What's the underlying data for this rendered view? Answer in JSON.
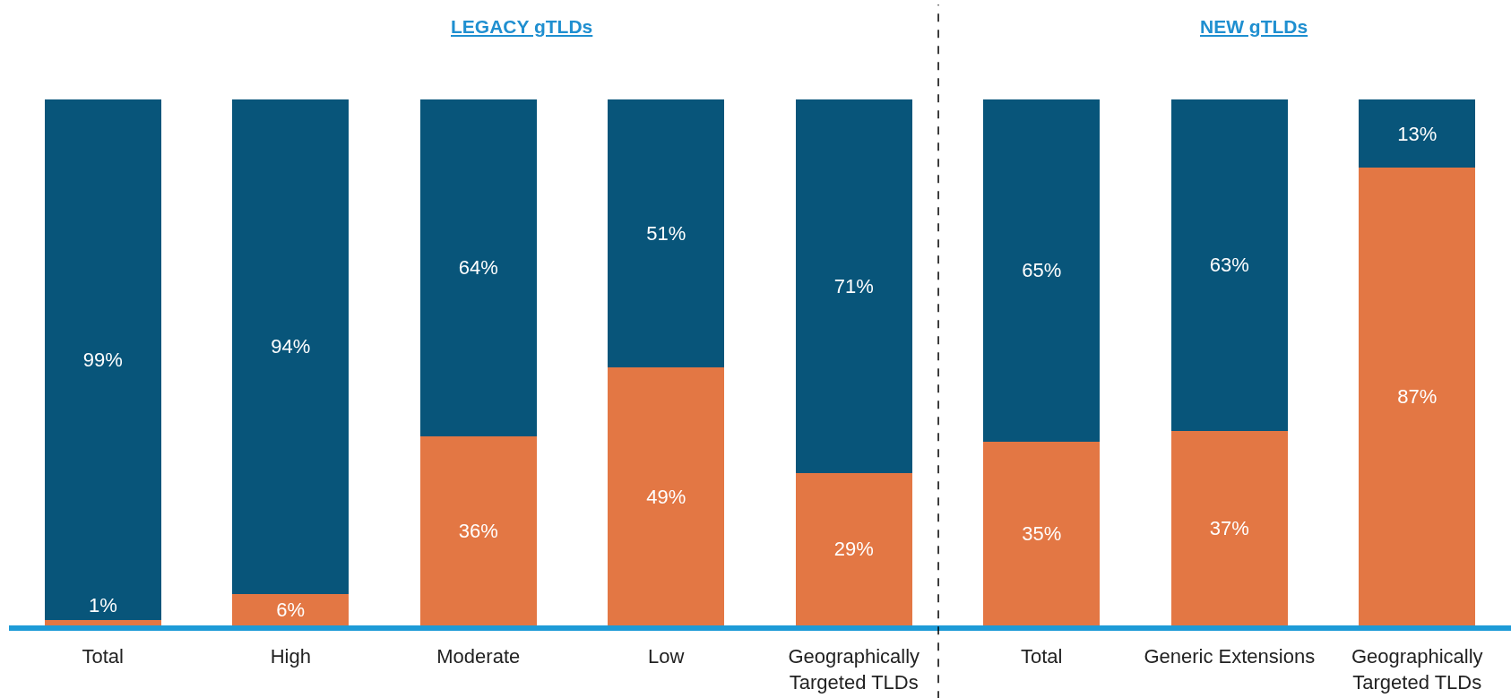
{
  "chart_data": {
    "type": "bar",
    "stacked": true,
    "categories": [
      "Total",
      "High",
      "Moderate",
      "Low",
      "Geographically Targeted TLDs",
      "Total",
      "Generic Extensions",
      "Geographically Targeted TLDs"
    ],
    "series": [
      {
        "color": "#e37744",
        "values": [
          1,
          6,
          36,
          49,
          29,
          35,
          37,
          87
        ],
        "value_labels": [
          "1%",
          "6%",
          "36%",
          "49%",
          "29%",
          "35%",
          "37%",
          "87%"
        ]
      },
      {
        "color": "#08557a",
        "values": [
          99,
          94,
          64,
          51,
          71,
          65,
          63,
          13
        ],
        "value_labels": [
          "99%",
          "94%",
          "64%",
          "51%",
          "71%",
          "65%",
          "63%",
          "13%"
        ]
      }
    ],
    "ylim": [
      0,
      100
    ],
    "tick_labels": "x",
    "grid": false,
    "annotations": [
      "LEGACY gTLDs",
      "NEW gTLDs"
    ]
  }
}
